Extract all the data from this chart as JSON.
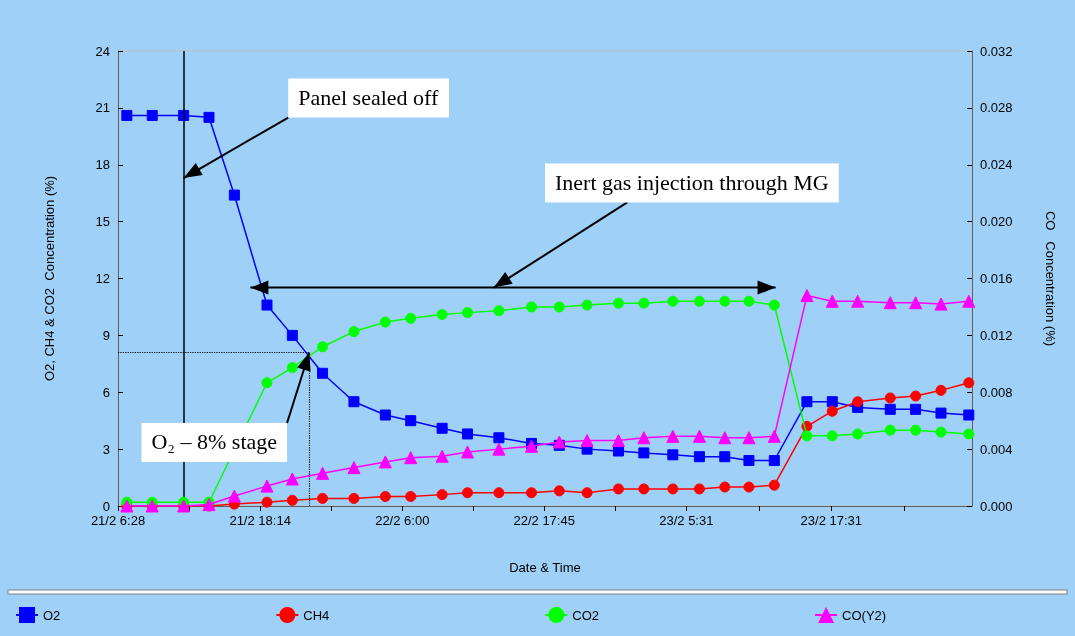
{
  "chart_data": {
    "type": "line",
    "xlabel": "Date & Time",
    "ylabel": "O2, CH4 & CO2  Concentration (%)",
    "y2label": "CO   Concentration (%)",
    "x": [
      "--02-21T07:12",
      "--02-21T09:18",
      "--02-21T11:54",
      "--02-21T14:00",
      "--02-21T16:06",
      "--02-21T18:48",
      "--02-21T20:54",
      "--02-21T23:24",
      "--02-22T02:00",
      "--02-22T04:36",
      "--02-22T06:42",
      "--02-22T09:18",
      "--02-22T11:24",
      "--02-22T14:00",
      "--02-22T16:42",
      "--02-22T19:00",
      "--02-22T21:18",
      "--02-22T23:54",
      "--02-23T02:00",
      "--02-23T04:24",
      "--02-23T06:36",
      "--02-23T08:42",
      "--02-23T10:42",
      "--02-23T12:48",
      "--02-23T15:30",
      "--02-23T17:36",
      "--02-23T19:42",
      "--02-23T22:24",
      "--02-24T00:30",
      "--02-24T02:36",
      "--02-24T04:54"
    ],
    "series": [
      {
        "name": "O2",
        "color": "#0000ff",
        "marker": "square",
        "values": [
          20.6,
          20.6,
          20.6,
          20.5,
          16.4,
          10.6,
          9.0,
          7.0,
          5.5,
          4.8,
          4.5,
          4.1,
          3.8,
          3.6,
          3.3,
          3.2,
          3.0,
          2.9,
          2.8,
          2.7,
          2.6,
          2.6,
          2.4,
          2.4,
          5.5,
          5.5,
          5.2,
          5.1,
          5.1,
          4.9,
          4.8
        ]
      },
      {
        "name": "CH4",
        "color": "#ff0000",
        "marker": "circle",
        "values": [
          0,
          0,
          0,
          0,
          0.1,
          0.2,
          0.3,
          0.4,
          0.4,
          0.5,
          0.5,
          0.6,
          0.7,
          0.7,
          0.7,
          0.8,
          0.7,
          0.9,
          0.9,
          0.9,
          0.9,
          1.0,
          1.0,
          1.1,
          4.2,
          5.0,
          5.5,
          5.7,
          5.8,
          6.1,
          6.5
        ]
      },
      {
        "name": "CO2",
        "color": "#00ff00",
        "marker": "circle",
        "values": [
          0.2,
          0.2,
          0.2,
          0.2,
          null,
          6.5,
          7.3,
          8.4,
          9.2,
          9.7,
          9.9,
          10.1,
          10.2,
          10.3,
          10.5,
          10.5,
          10.6,
          10.7,
          10.7,
          10.8,
          10.8,
          10.8,
          10.8,
          10.6,
          3.7,
          3.7,
          3.8,
          4.0,
          4.0,
          3.9,
          3.8
        ]
      },
      {
        "name": "CO(Y2)",
        "color": "#ff00ff",
        "marker": "triangle",
        "axis": "y2",
        "values": [
          0,
          0,
          0,
          0.0001,
          0.0007,
          0.0014,
          0.0019,
          0.0023,
          0.0027,
          0.0031,
          0.0034,
          0.0035,
          0.0038,
          0.004,
          0.0042,
          0.0045,
          0.0046,
          0.0046,
          0.0048,
          0.0049,
          0.0049,
          0.0048,
          0.0048,
          0.0049,
          0.0148,
          0.0144,
          0.0144,
          0.0143,
          0.0143,
          0.0142,
          0.0144
        ]
      }
    ],
    "xlim": [
      "--02-21T06:28",
      "--02-24T05:10"
    ],
    "xticks": [
      {
        "value": "--02-21T06:28",
        "label": "21/2 6:28"
      },
      {
        "value": "--02-21T12:21",
        "label": null
      },
      {
        "value": "--02-21T18:14",
        "label": "21/2 18:14"
      },
      {
        "value": "--02-22T00:07",
        "label": null
      },
      {
        "value": "--02-22T06:00",
        "label": "22/2 6:00"
      },
      {
        "value": "--02-22T11:53",
        "label": null
      },
      {
        "value": "--02-22T17:45",
        "label": "22/2 17:45"
      },
      {
        "value": "--02-22T23:38",
        "label": null
      },
      {
        "value": "--02-23T05:31",
        "label": "23/2 5:31"
      },
      {
        "value": "--02-23T11:31",
        "label": null
      },
      {
        "value": "--02-23T17:31",
        "label": "23/2 17:31"
      },
      {
        "value": "--02-23T23:31",
        "label": null
      }
    ],
    "ylim": [
      0,
      24
    ],
    "yticks": [
      0,
      3,
      6,
      9,
      12,
      15,
      18,
      21,
      24
    ],
    "y2lim": [
      0,
      0.032
    ],
    "y2ticks": [
      {
        "value": 0,
        "label": "0.000"
      },
      {
        "value": 0.004,
        "label": "0.004"
      },
      {
        "value": 0.008,
        "label": "0.008"
      },
      {
        "value": 0.012,
        "label": "0.012"
      },
      {
        "value": 0.016,
        "label": "0.016"
      },
      {
        "value": 0.02,
        "label": "0.020"
      },
      {
        "value": 0.024,
        "label": "0.024"
      },
      {
        "value": 0.028,
        "label": "0.028"
      },
      {
        "value": 0.032,
        "label": "0.032"
      }
    ],
    "ref_lines": [
      {
        "axis": "x",
        "value": "--02-21T11:54",
        "color": "#000000",
        "line_style": "solid"
      },
      {
        "axis": "y",
        "value": 8.1,
        "color": "#000000",
        "line_style": "dotted"
      },
      {
        "axis": "x",
        "value": "--02-21T22:18",
        "color": "#000000",
        "line_style": "dotted"
      }
    ],
    "annotations": [
      {
        "text": "Panel sealed off",
        "x": "--02-21T11:54",
        "y": 17.3
      },
      "Inert gas injection through MG",
      {
        "text": "O₂ – 8% stage",
        "x": "--02-21T22:18",
        "y": 8.1
      }
    ],
    "line_style": "solid",
    "grid": false,
    "legend": "bottom"
  }
}
